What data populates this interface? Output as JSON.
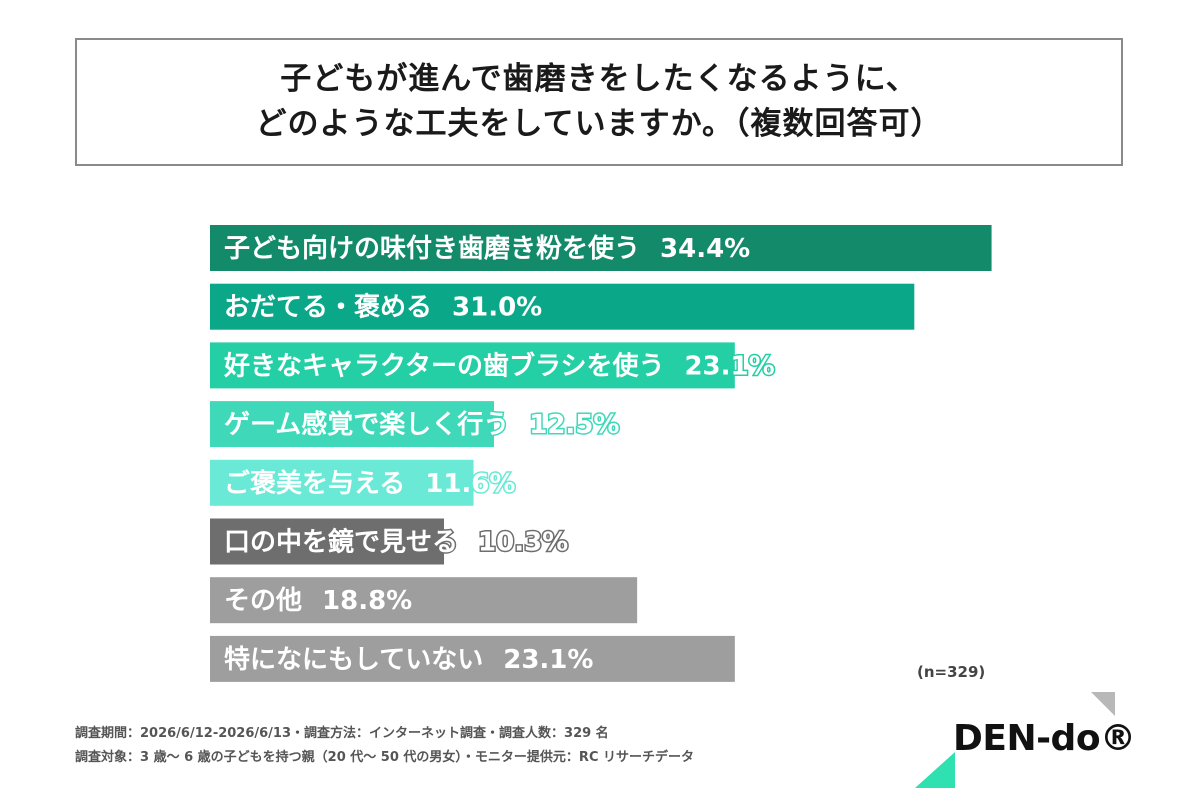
{
  "title": {
    "line1": "子どもが進んで歯磨きをしたくなるように、",
    "line2": "どのような工夫をしていますか。（複数回答可）"
  },
  "chart_data": {
    "type": "bar",
    "orientation": "horizontal",
    "categories": [
      "子ども向けの味付き歯磨き粉を使う",
      "おだてる・褒める",
      "好きなキャラクターの歯ブラシを使う",
      "ゲーム感覚で楽しく行う",
      "ご褒美を与える",
      "口の中を鏡で見せる",
      "その他",
      "特になにもしていない"
    ],
    "values": [
      34.4,
      31.0,
      23.1,
      12.5,
      11.6,
      10.3,
      18.8,
      23.1
    ],
    "value_labels": [
      "34.4%",
      "31.0%",
      "23.1%",
      "12.5%",
      "11.6%",
      "10.3%",
      "18.8%",
      "23.1%"
    ],
    "colors": [
      "#138a6a",
      "#0aa889",
      "#25cfa6",
      "#3fd9b9",
      "#6ae9d6",
      "#6e6e6e",
      "#9e9e9e",
      "#9e9e9e"
    ],
    "grid": false,
    "legend": "none"
  },
  "sample_note": "(n=329)",
  "footer": {
    "line1": "調査期間：2026/6/12-2026/6/13・調査方法：インターネット調査・調査人数：329 名",
    "line2": "調査対象：3 歳～ 6 歳の子どもを持つ親（20 代～ 50 代の男女）・モニター提供元：RC リサーチデータ"
  },
  "logo": {
    "text": "DEN-do®",
    "accent_color": "#2fe0b0",
    "corner_color": "#b8b8b8"
  }
}
